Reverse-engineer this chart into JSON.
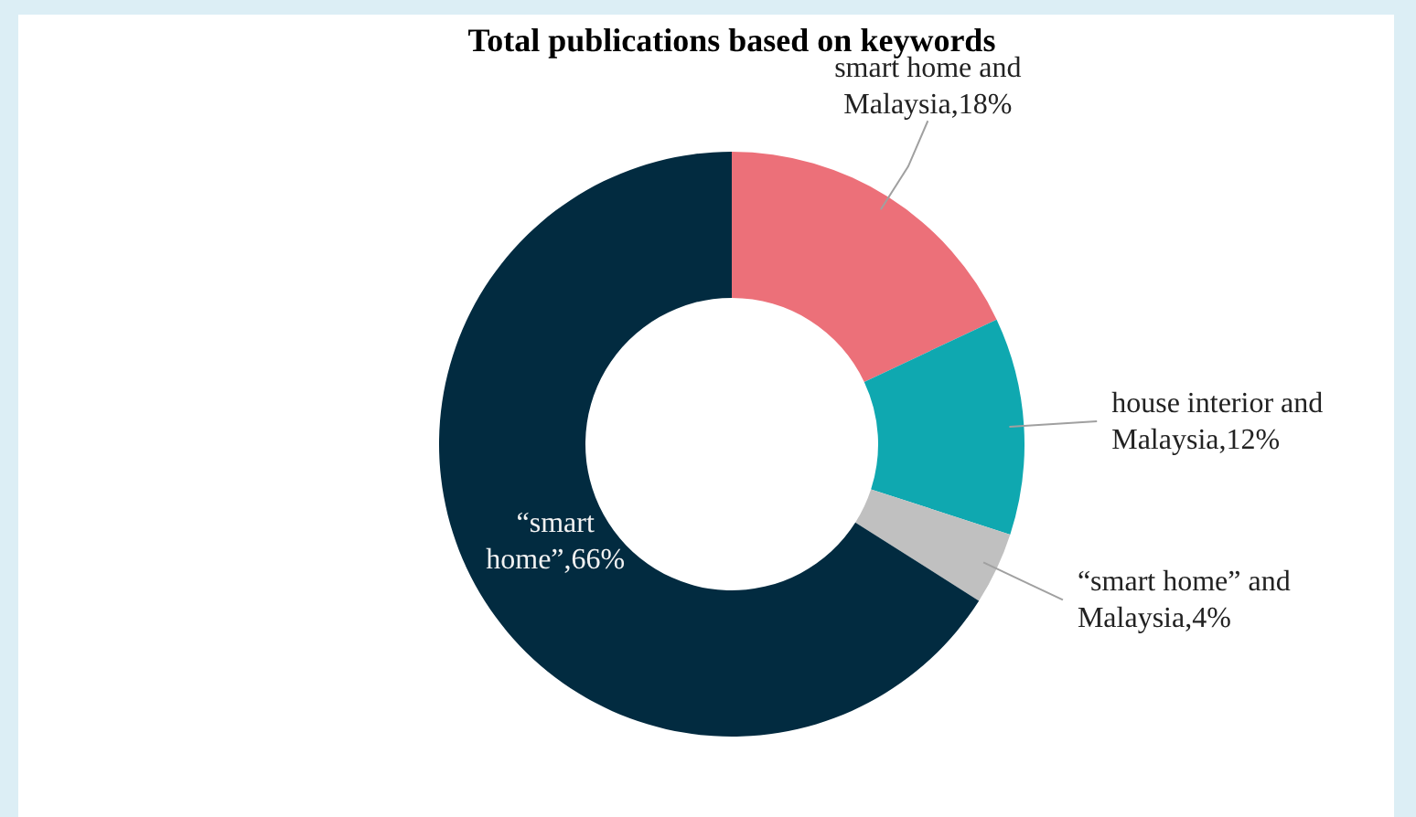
{
  "chart_data": {
    "type": "donut",
    "title": "Total publications based on keywords",
    "categories": [
      "smart home and Malaysia",
      "house interior and Malaysia",
      "“smart home” and Malaysia",
      "“smart home”"
    ],
    "values": [
      18,
      12,
      4,
      66
    ],
    "value_labels": [
      ",18%",
      ",12%",
      ",4%",
      ",66%"
    ],
    "colors": [
      "#ec7079",
      "#0fa8b0",
      "#c0c0c0",
      "#022b40"
    ]
  }
}
